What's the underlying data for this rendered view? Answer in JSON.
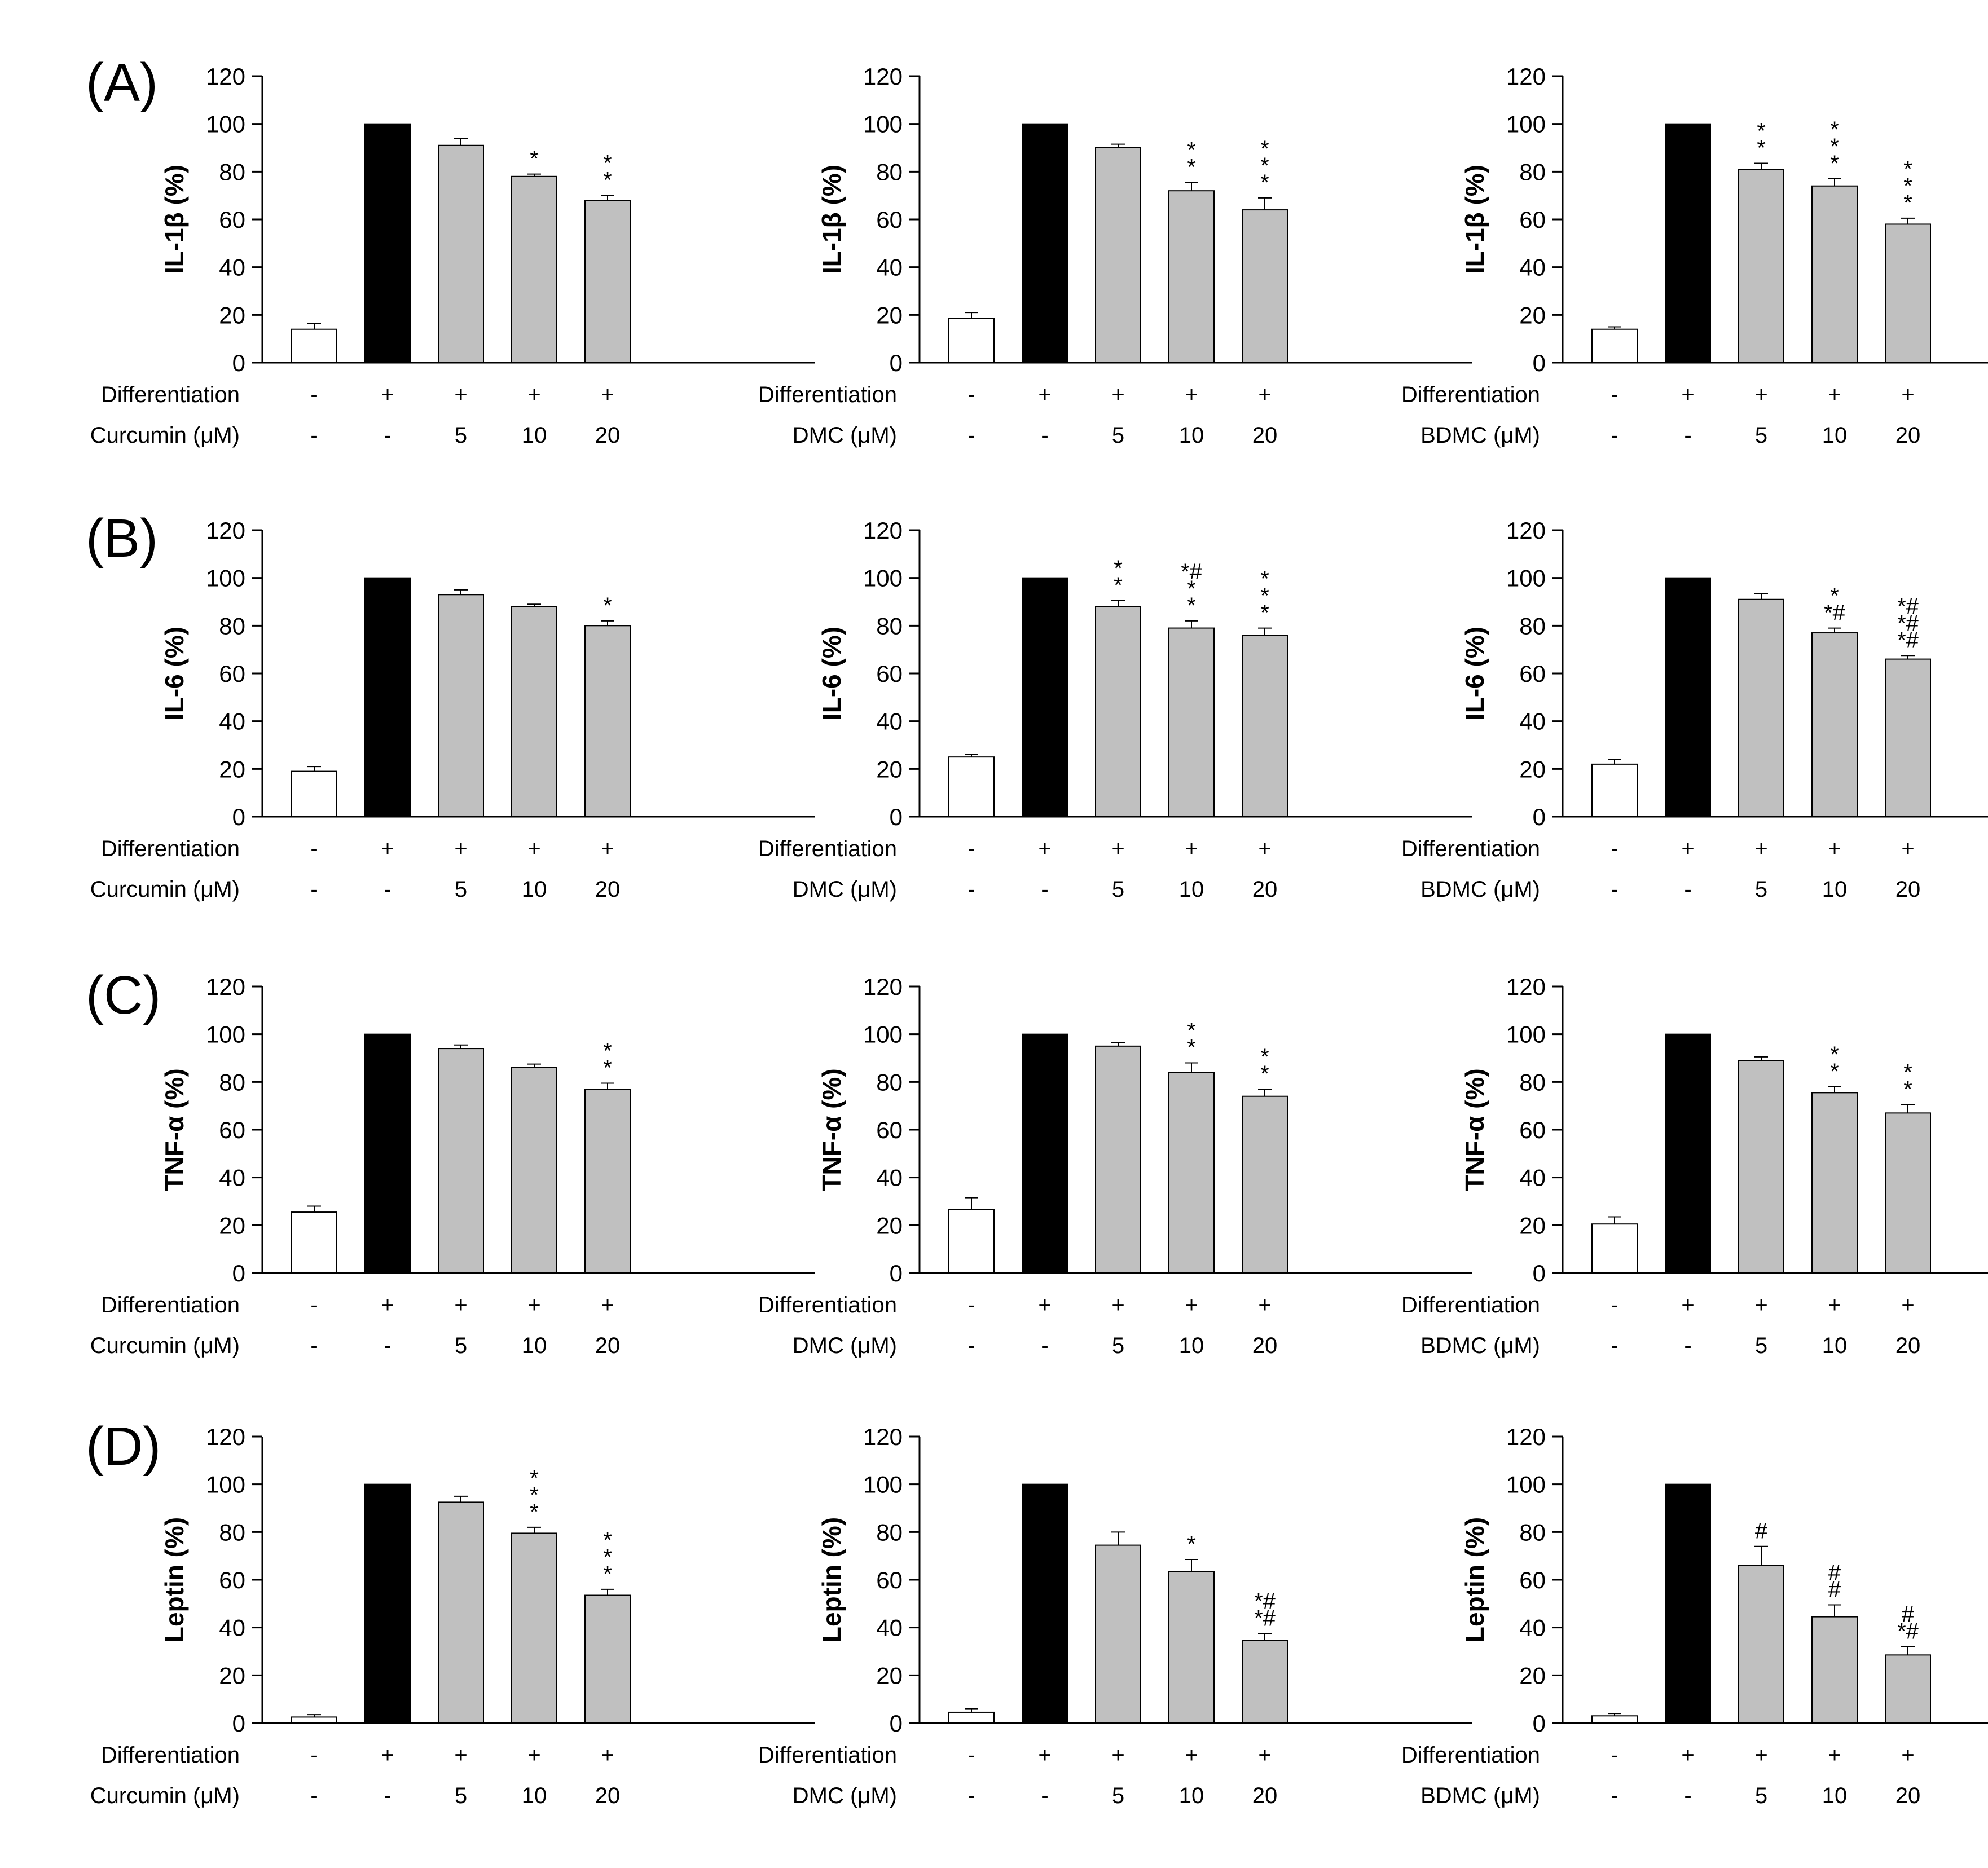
{
  "panel_labels": [
    "(A)",
    "(B)",
    "(C)",
    "(D)"
  ],
  "row_labels": {
    "differentiation": "Differentiation"
  },
  "row_values": {
    "differentiation": [
      "-",
      "+",
      "+",
      "+",
      "+"
    ]
  },
  "colors": {
    "control": "#ffffff",
    "differentiated": "#000000",
    "treated": "#c0c0c0",
    "axis": "#000000",
    "bar_edge": "#000000"
  },
  "chart_data": [
    {
      "type": "bar",
      "panel": "A",
      "ylabel": "IL-1β (%)",
      "ylim": [
        0,
        120
      ],
      "yticks": [
        0,
        20,
        40,
        60,
        80,
        100,
        120
      ],
      "compound_label": "Curcumin (μM)",
      "doses": [
        "-",
        "-",
        "5",
        "10",
        "20"
      ],
      "values": [
        14,
        100,
        91,
        78,
        68
      ],
      "errors": [
        2.5,
        0,
        3,
        1,
        2
      ],
      "significance": [
        [],
        [],
        [],
        [
          "*"
        ],
        [
          "*",
          "*"
        ]
      ]
    },
    {
      "type": "bar",
      "panel": "A",
      "ylabel": "IL-1β (%)",
      "ylim": [
        0,
        120
      ],
      "yticks": [
        0,
        20,
        40,
        60,
        80,
        100,
        120
      ],
      "compound_label": "DMC (μM)",
      "doses": [
        "-",
        "-",
        "5",
        "10",
        "20"
      ],
      "values": [
        18.5,
        100,
        90,
        72,
        64
      ],
      "errors": [
        2.5,
        0,
        1.5,
        3.5,
        5
      ],
      "significance": [
        [],
        [],
        [],
        [
          "*",
          "*"
        ],
        [
          "*",
          "*",
          "*"
        ]
      ]
    },
    {
      "type": "bar",
      "panel": "A",
      "ylabel": "IL-1β (%)",
      "ylim": [
        0,
        120
      ],
      "yticks": [
        0,
        20,
        40,
        60,
        80,
        100,
        120
      ],
      "compound_label": "BDMC (μM)",
      "doses": [
        "-",
        "-",
        "5",
        "10",
        "20"
      ],
      "values": [
        14,
        100,
        81,
        74,
        58
      ],
      "errors": [
        1,
        0,
        2.5,
        3,
        2.5
      ],
      "significance": [
        [],
        [],
        [
          "*",
          "*"
        ],
        [
          "*",
          "*",
          "*"
        ],
        [
          "*",
          "*",
          "*"
        ]
      ]
    },
    {
      "type": "bar",
      "panel": "B",
      "ylabel": "IL-6 (%)",
      "ylim": [
        0,
        120
      ],
      "yticks": [
        0,
        20,
        40,
        60,
        80,
        100,
        120
      ],
      "compound_label": "Curcumin (μM)",
      "doses": [
        "-",
        "-",
        "5",
        "10",
        "20"
      ],
      "values": [
        19,
        100,
        93,
        88,
        80
      ],
      "errors": [
        2,
        0,
        2,
        1,
        2
      ],
      "significance": [
        [],
        [],
        [],
        [],
        [
          "*"
        ]
      ]
    },
    {
      "type": "bar",
      "panel": "B",
      "ylabel": "IL-6 (%)",
      "ylim": [
        0,
        120
      ],
      "yticks": [
        0,
        20,
        40,
        60,
        80,
        100,
        120
      ],
      "compound_label": "DMC (μM)",
      "doses": [
        "-",
        "-",
        "5",
        "10",
        "20"
      ],
      "values": [
        25,
        100,
        88,
        79,
        76
      ],
      "errors": [
        1,
        0,
        2.5,
        3,
        3
      ],
      "significance": [
        [],
        [],
        [
          "*",
          "*"
        ],
        [
          "*",
          "*",
          "*#"
        ],
        [
          "*",
          "*",
          "*"
        ]
      ]
    },
    {
      "type": "bar",
      "panel": "B",
      "ylabel": "IL-6 (%)",
      "ylim": [
        0,
        120
      ],
      "yticks": [
        0,
        20,
        40,
        60,
        80,
        100,
        120
      ],
      "compound_label": "BDMC (μM)",
      "doses": [
        "-",
        "-",
        "5",
        "10",
        "20"
      ],
      "values": [
        22,
        100,
        91,
        77,
        66
      ],
      "errors": [
        2,
        0,
        2.5,
        2,
        1.5
      ],
      "significance": [
        [],
        [],
        [],
        [
          "*#",
          "*"
        ],
        [
          "*#",
          "*#",
          "*#"
        ]
      ]
    },
    {
      "type": "bar",
      "panel": "C",
      "ylabel": "TNF-α (%)",
      "ylim": [
        0,
        120
      ],
      "yticks": [
        0,
        20,
        40,
        60,
        80,
        100,
        120
      ],
      "compound_label": "Curcumin (μM)",
      "doses": [
        "-",
        "-",
        "5",
        "10",
        "20"
      ],
      "values": [
        25.5,
        100,
        94,
        86,
        77
      ],
      "errors": [
        2.5,
        0,
        1.5,
        1.5,
        2.5
      ],
      "significance": [
        [],
        [],
        [],
        [],
        [
          "*",
          "*"
        ]
      ]
    },
    {
      "type": "bar",
      "panel": "C",
      "ylabel": "TNF-α (%)",
      "ylim": [
        0,
        120
      ],
      "yticks": [
        0,
        20,
        40,
        60,
        80,
        100,
        120
      ],
      "compound_label": "DMC (μM)",
      "doses": [
        "-",
        "-",
        "5",
        "10",
        "20"
      ],
      "values": [
        26.5,
        100,
        95,
        84,
        74
      ],
      "errors": [
        5,
        0,
        1.5,
        4,
        3
      ],
      "significance": [
        [],
        [],
        [],
        [
          "*",
          "*"
        ],
        [
          "*",
          "*"
        ]
      ]
    },
    {
      "type": "bar",
      "panel": "C",
      "ylabel": "TNF-α (%)",
      "ylim": [
        0,
        120
      ],
      "yticks": [
        0,
        20,
        40,
        60,
        80,
        100,
        120
      ],
      "compound_label": "BDMC (μM)",
      "doses": [
        "-",
        "-",
        "5",
        "10",
        "20"
      ],
      "values": [
        20.5,
        100,
        89,
        75.5,
        67
      ],
      "errors": [
        3,
        0,
        1.5,
        2.5,
        3.5
      ],
      "significance": [
        [],
        [],
        [],
        [
          "*",
          "*"
        ],
        [
          "*",
          "*"
        ]
      ]
    },
    {
      "type": "bar",
      "panel": "D",
      "ylabel": "Leptin (%)",
      "ylim": [
        0,
        120
      ],
      "yticks": [
        0,
        20,
        40,
        60,
        80,
        100,
        120
      ],
      "compound_label": "Curcumin (μM)",
      "doses": [
        "-",
        "-",
        "5",
        "10",
        "20"
      ],
      "values": [
        2.5,
        100,
        92.5,
        79.5,
        53.5
      ],
      "errors": [
        1,
        0,
        2.5,
        2.5,
        2.5
      ],
      "significance": [
        [],
        [],
        [],
        [
          "*",
          "*",
          "*"
        ],
        [
          "*",
          "*",
          "*"
        ]
      ]
    },
    {
      "type": "bar",
      "panel": "D",
      "ylabel": "Leptin (%)",
      "ylim": [
        0,
        120
      ],
      "yticks": [
        0,
        20,
        40,
        60,
        80,
        100,
        120
      ],
      "compound_label": "DMC (μM)",
      "doses": [
        "-",
        "-",
        "5",
        "10",
        "20"
      ],
      "values": [
        4.5,
        100,
        74.5,
        63.5,
        34.5
      ],
      "errors": [
        1.5,
        0,
        5.5,
        5,
        3
      ],
      "significance": [
        [],
        [],
        [],
        [
          "*"
        ],
        [
          "*#",
          "*#"
        ]
      ]
    },
    {
      "type": "bar",
      "panel": "D",
      "ylabel": "Leptin (%)",
      "ylim": [
        0,
        120
      ],
      "yticks": [
        0,
        20,
        40,
        60,
        80,
        100,
        120
      ],
      "compound_label": "BDMC (μM)",
      "doses": [
        "-",
        "-",
        "5",
        "10",
        "20"
      ],
      "values": [
        3,
        100,
        66,
        44.5,
        28.5
      ],
      "errors": [
        1,
        0,
        8,
        5,
        3.5
      ],
      "significance": [
        [],
        [],
        [
          "#"
        ],
        [
          "#",
          "#"
        ],
        [
          "*#",
          "#"
        ]
      ]
    }
  ]
}
